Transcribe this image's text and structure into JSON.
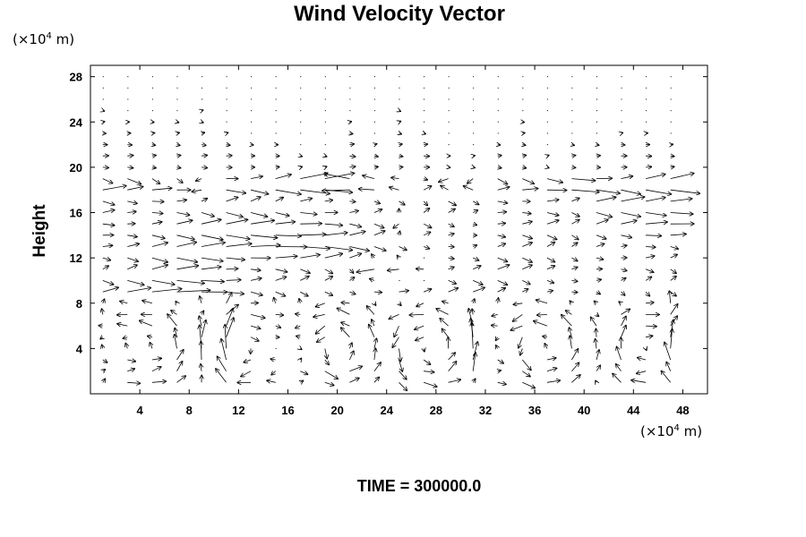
{
  "chart_data": {
    "type": "vector-field",
    "title": "Wind Velocity Vector",
    "ylabel": "Height",
    "xlabel": "",
    "x_unit": {
      "prefix": "(×10",
      "exp": "4",
      "suffix": " m)"
    },
    "y_unit": {
      "prefix": "(×10",
      "exp": "4",
      "suffix": " m)"
    },
    "xlim": [
      0,
      50
    ],
    "ylim": [
      0,
      29
    ],
    "x_ticks": [
      "4",
      "8",
      "12",
      "16",
      "20",
      "24",
      "28",
      "32",
      "36",
      "40",
      "44",
      "48"
    ],
    "y_ticks": [
      "4",
      "8",
      "12",
      "16",
      "20",
      "24",
      "28"
    ],
    "x_tick_values": [
      4,
      8,
      12,
      16,
      20,
      24,
      28,
      32,
      36,
      40,
      44,
      48
    ],
    "y_tick_values": [
      4,
      8,
      12,
      16,
      20,
      24,
      28
    ],
    "grid_spacing": {
      "dx": 2,
      "dy": 1
    },
    "upper_region_rows": [
      {
        "y": 28,
        "u": [
          0.05,
          0.05,
          0.05,
          0,
          0.05,
          0,
          0.05,
          0,
          -0.05,
          0,
          0.05,
          0,
          0.05,
          0,
          0.05,
          0,
          0,
          0.05,
          0,
          0.05,
          0.05,
          0,
          0.05,
          0
        ]
      },
      {
        "y": 24,
        "u": [
          0.1,
          0.1,
          0.1,
          0.1,
          0.1,
          0,
          0,
          0,
          0,
          0,
          0.1,
          0,
          0.1,
          0,
          0,
          0,
          0,
          0.1,
          0,
          0,
          0,
          0,
          0,
          0
        ]
      },
      {
        "y": 21,
        "u": [
          0.3,
          0.3,
          0.2,
          0.2,
          0.3,
          0.3,
          0.2,
          0.2,
          0.1,
          0.1,
          0.3,
          0.2,
          0.2,
          0.3,
          0.1,
          0.1,
          0.2,
          0.2,
          0.1,
          0.2,
          0.2,
          0.3,
          0.3,
          0.2
        ]
      }
    ],
    "jet_rows": [
      {
        "y": 19,
        "u": [
          0.5,
          0.7,
          0.4,
          0.3,
          -0.3,
          0.6,
          0.6,
          0.8,
          1.4,
          1.5,
          -1.3,
          -0.6,
          -0.4,
          0.2,
          -0.5,
          -0.3,
          0.5,
          0.6,
          0.8,
          1.2,
          0.8,
          0.6,
          1.0,
          1.2
        ]
      },
      {
        "y": 18,
        "u": [
          1.2,
          0.8,
          1.0,
          0.7,
          -0.5,
          1.0,
          0.9,
          1.3,
          1.5,
          1.4,
          -1.4,
          -0.8,
          -0.5,
          0.4,
          -0.4,
          -0.5,
          0.6,
          0.8,
          1.0,
          1.4,
          1.2,
          1.0,
          1.3,
          1.5
        ]
      },
      {
        "y": 17,
        "u": [
          0.6,
          0.5,
          0.6,
          0.5,
          0.3,
          0.6,
          0.5,
          0.4,
          0.6,
          0.4,
          0.3,
          0.3,
          0.3,
          0.2,
          0.4,
          0.3,
          0.5,
          0.4,
          0.6,
          0.4,
          1.0,
          1.2,
          1.0,
          1.1
        ]
      },
      {
        "y": 15,
        "u": [
          0.6,
          0.4,
          0.5,
          0.8,
          1.0,
          1.1,
          1.2,
          1.0,
          1.1,
          0.9,
          0.6,
          0.5,
          -0.3,
          0.4,
          0.3,
          0.2,
          0.4,
          0.5,
          0.6,
          0.4,
          0.6,
          0.8,
          1.1,
          1.2
        ]
      },
      {
        "y": 13,
        "u": [
          0.5,
          0.6,
          0.8,
          1.0,
          1.2,
          1.3,
          1.5,
          1.6,
          1.5,
          1.4,
          1.0,
          0.6,
          0.4,
          0.3,
          0.3,
          0.2,
          0.4,
          0.5,
          0.4,
          0.3,
          0.4,
          0.3,
          0.5,
          0.4
        ]
      },
      {
        "y": 11,
        "u": [
          0.3,
          0.5,
          0.8,
          1.1,
          1.0,
          0.6,
          0.5,
          0.6,
          0.5,
          0.4,
          0.2,
          -0.9,
          -0.6,
          -0.4,
          0.3,
          0.4,
          0.6,
          0.5,
          0.4,
          0.3,
          0.3,
          0.3,
          0.4,
          0.3
        ]
      },
      {
        "y": 9,
        "u": [
          0.8,
          1.2,
          1.5,
          1.7,
          1.3,
          0.9,
          0.6,
          0.5,
          0.4,
          0.4,
          0.3,
          0.4,
          0.5,
          0.4,
          0.5,
          0.6,
          0.4,
          0.3,
          0.3,
          0.3,
          0.2,
          0.2,
          0.2,
          0.3
        ]
      }
    ],
    "convection_cells": [
      {
        "cx": 4.5,
        "cy": 4.0,
        "rx": 3.5,
        "ry": 3.6,
        "sense": 1
      },
      {
        "cx": 12.5,
        "cy": 4.0,
        "rx": 3.0,
        "ry": 3.6,
        "sense": -1
      },
      {
        "cx": 20.0,
        "cy": 4.0,
        "rx": 3.2,
        "ry": 3.6,
        "sense": 1
      },
      {
        "cx": 27.5,
        "cy": 4.0,
        "rx": 3.5,
        "ry": 3.6,
        "sense": 1
      },
      {
        "cx": 36.5,
        "cy": 4.0,
        "rx": 4.0,
        "ry": 3.6,
        "sense": 1
      },
      {
        "cx": 45.0,
        "cy": 4.0,
        "rx": 2.5,
        "ry": 3.6,
        "sense": -1
      }
    ],
    "updrafts_x": [
      2,
      10,
      16,
      32,
      47
    ],
    "grid": false,
    "legend": "none"
  },
  "footer": {
    "time_label": "TIME = 300000.0"
  }
}
